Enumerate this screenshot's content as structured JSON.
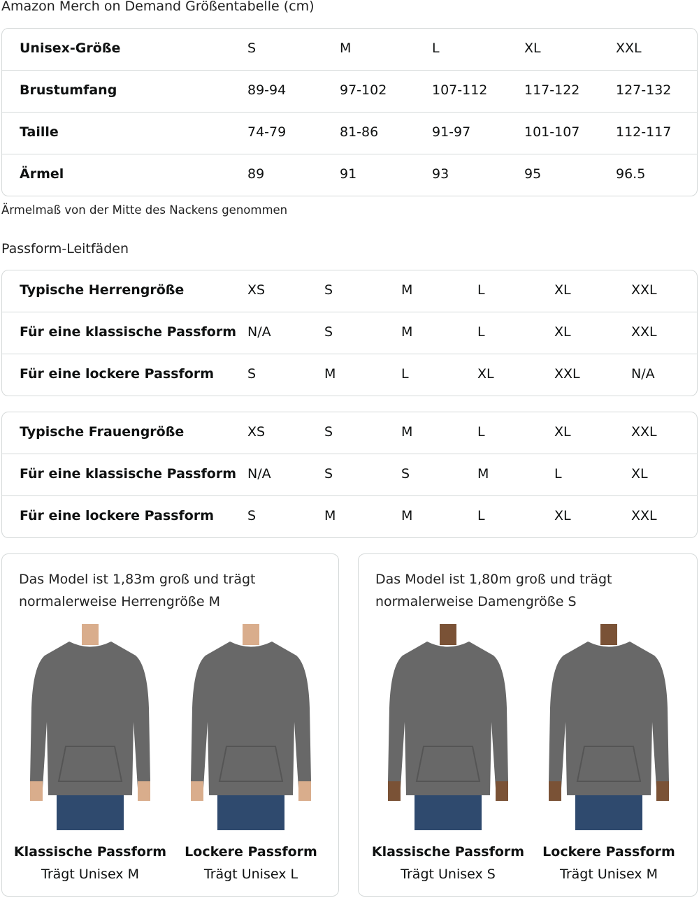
{
  "title": "Amazon Merch on Demand Größentabelle (cm)",
  "size_table": {
    "rows": [
      [
        "Unisex-Größe",
        "S",
        "M",
        "L",
        "XL",
        "XXL"
      ],
      [
        "Brustumfang",
        "89-94",
        "97-102",
        "107-112",
        "117-122",
        "127-132"
      ],
      [
        "Taille",
        "74-79",
        "81-86",
        "91-97",
        "101-107",
        "112-117"
      ],
      [
        "Ärmel",
        "89",
        "91",
        "93",
        "95",
        "96.5"
      ]
    ]
  },
  "sleeve_note": "Ärmelmaß von der Mitte des Nackens genommen",
  "fit_heading": "Passform-Leitfäden",
  "men_fit": {
    "rows": [
      [
        "Typische Herrengröße",
        "XS",
        "S",
        "M",
        "L",
        "XL",
        "XXL"
      ],
      [
        "Für eine klassische Passform",
        "N/A",
        "S",
        "M",
        "L",
        "XL",
        "XXL"
      ],
      [
        "Für eine lockere Passform",
        "S",
        "M",
        "L",
        "XL",
        "XXL",
        "N/A"
      ]
    ]
  },
  "women_fit": {
    "rows": [
      [
        "Typische Frauengröße",
        "XS",
        "S",
        "M",
        "L",
        "XL",
        "XXL"
      ],
      [
        "Für eine klassische Passform",
        "N/A",
        "S",
        "S",
        "M",
        "L",
        "XL"
      ],
      [
        "Für eine lockere Passform",
        "S",
        "M",
        "M",
        "L",
        "XL",
        "XXL"
      ]
    ]
  },
  "cards": [
    {
      "line1": "Das Model ist 1,83m groß und trägt",
      "line2": "normalerweise Herrengröße M",
      "models": [
        {
          "fit": "Klassische Passform",
          "wears": "Trägt Unisex M"
        },
        {
          "fit": "Lockere Passform",
          "wears": "Trägt Unisex L"
        }
      ]
    },
    {
      "line1": "Das Model ist 1,80m groß und trägt",
      "line2": "normalerweise Damengröße S",
      "models": [
        {
          "fit": "Klassische Passform",
          "wears": "Trägt Unisex S"
        },
        {
          "fit": "Lockere Passform",
          "wears": "Trägt Unisex M"
        }
      ]
    }
  ],
  "colors": {
    "hoodie": "#686868",
    "border": "#d5d9d9",
    "jeans": "#2f4a6e"
  }
}
